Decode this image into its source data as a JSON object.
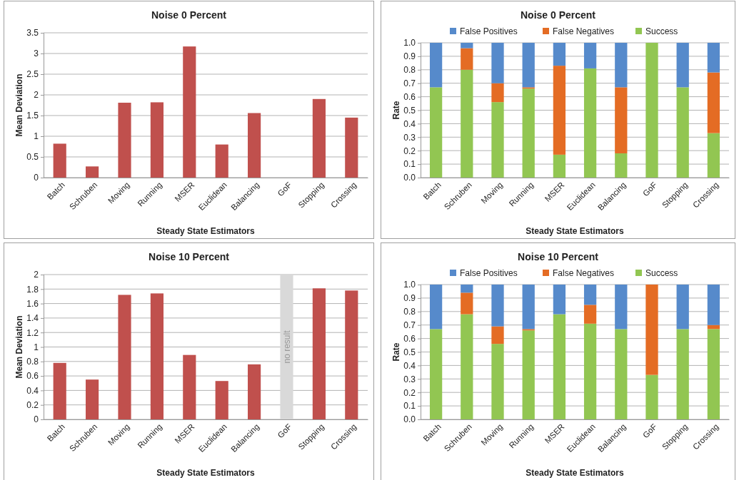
{
  "chart_data": [
    {
      "type": "bar",
      "title": "Noise 0 Percent",
      "xlabel": "Steady State Estimators",
      "ylabel": "Mean Deviation",
      "categories": [
        "Batch",
        "Schruben",
        "Moving",
        "Running",
        "MSER",
        "Euclidean",
        "Balancing",
        "GoF",
        "Stopping",
        "Crossing"
      ],
      "values": [
        0.82,
        0.27,
        1.81,
        1.82,
        3.17,
        0.8,
        1.56,
        0,
        1.9,
        1.45
      ],
      "color": "#c0504d",
      "ylim": [
        0,
        3.5
      ],
      "yticks": [
        0,
        0.5,
        1,
        1.5,
        2,
        2.5,
        3,
        3.5
      ],
      "grid": "y",
      "legend": false
    },
    {
      "type": "bar",
      "title": "Noise 0 Percent",
      "xlabel": "Steady State Estimators",
      "ylabel": "Rate",
      "categories": [
        "Batch",
        "Schruben",
        "Moving",
        "Running",
        "MSER",
        "Euclidean",
        "Balancing",
        "GoF",
        "Stopping",
        "Crossing"
      ],
      "stacked": true,
      "series": [
        {
          "name": "Success",
          "color": "#92c652",
          "values": [
            0.67,
            0.8,
            0.56,
            0.66,
            0.17,
            0.81,
            0.18,
            1,
            0.67,
            0.33
          ]
        },
        {
          "name": "False Negatives",
          "color": "#e46c24",
          "values": [
            0,
            0.16,
            0.14,
            0.01,
            0.66,
            0,
            0.49,
            0,
            0,
            0.45
          ]
        },
        {
          "name": "False Positives",
          "color": "#568acb",
          "values": [
            0.33,
            0.04,
            0.3,
            0.33,
            0.17,
            0.19,
            0.33,
            0,
            0.33,
            0.22
          ]
        }
      ],
      "ylim": [
        0,
        1
      ],
      "yticks": [
        {
          "value": 0,
          "label": "0.0"
        },
        {
          "value": 0.1,
          "label": "0.1"
        },
        {
          "value": 0.2,
          "label": "0.2"
        },
        {
          "value": 0.3,
          "label": "0.3"
        },
        {
          "value": 0.4,
          "label": "0.4"
        },
        {
          "value": 0.5,
          "label": "0.5"
        },
        {
          "value": 0.6,
          "label": "0.6"
        },
        {
          "value": 0.7,
          "label": "0.7"
        },
        {
          "value": 0.8,
          "label": "0.8"
        },
        {
          "value": 0.9,
          "label": "0.9"
        },
        {
          "value": 1,
          "label": "1.0"
        }
      ],
      "grid": "y",
      "legend": "top"
    },
    {
      "type": "bar",
      "title": "Noise 10 Percent",
      "xlabel": "Steady State Estimators",
      "ylabel": "Mean Deviation",
      "categories": [
        "Batch",
        "Schruben",
        "Moving",
        "Running",
        "MSER",
        "Euclidean",
        "Balancing",
        "GoF",
        "Stopping",
        "Crossing"
      ],
      "values": [
        0.78,
        0.55,
        1.72,
        1.74,
        0.89,
        0.53,
        0.76,
        null,
        1.81,
        1.78
      ],
      "color": "#c0504d",
      "ylim": [
        0,
        2
      ],
      "yticks": [
        0,
        0.2,
        0.4,
        0.6,
        0.8,
        1,
        1.2,
        1.4,
        1.6,
        1.8,
        2
      ],
      "grid": "y",
      "legend": false,
      "bands": [
        {
          "axis": "x",
          "from": "GoF",
          "to": "GoF",
          "label": "no result",
          "color": "#d9d9d9"
        }
      ]
    },
    {
      "type": "bar",
      "title": "Noise 10 Percent",
      "xlabel": "Steady State Estimators",
      "ylabel": "Rate",
      "categories": [
        "Batch",
        "Schruben",
        "Moving",
        "Running",
        "MSER",
        "Euclidean",
        "Balancing",
        "GoF",
        "Stopping",
        "Crossing"
      ],
      "stacked": true,
      "series": [
        {
          "name": "Success",
          "color": "#92c652",
          "values": [
            0.67,
            0.78,
            0.56,
            0.66,
            0.78,
            0.71,
            0.67,
            0.33,
            0.67,
            0.67
          ]
        },
        {
          "name": "False Negatives",
          "color": "#e46c24",
          "values": [
            0,
            0.16,
            0.13,
            0.01,
            0,
            0.14,
            0,
            0.67,
            0,
            0.03
          ]
        },
        {
          "name": "False Positives",
          "color": "#568acb",
          "values": [
            0.33,
            0.06,
            0.31,
            0.33,
            0.22,
            0.15,
            0.33,
            0,
            0.33,
            0.3
          ]
        }
      ],
      "ylim": [
        0,
        1
      ],
      "yticks": [
        {
          "value": 0,
          "label": "0.0"
        },
        {
          "value": 0.1,
          "label": "0.1"
        },
        {
          "value": 0.2,
          "label": "0.2"
        },
        {
          "value": 0.3,
          "label": "0.3"
        },
        {
          "value": 0.4,
          "label": "0.4"
        },
        {
          "value": 0.5,
          "label": "0.5"
        },
        {
          "value": 0.6,
          "label": "0.6"
        },
        {
          "value": 0.7,
          "label": "0.7"
        },
        {
          "value": 0.8,
          "label": "0.8"
        },
        {
          "value": 0.9,
          "label": "0.9"
        },
        {
          "value": 1,
          "label": "1.0"
        }
      ],
      "grid": "y",
      "legend": "top"
    }
  ]
}
